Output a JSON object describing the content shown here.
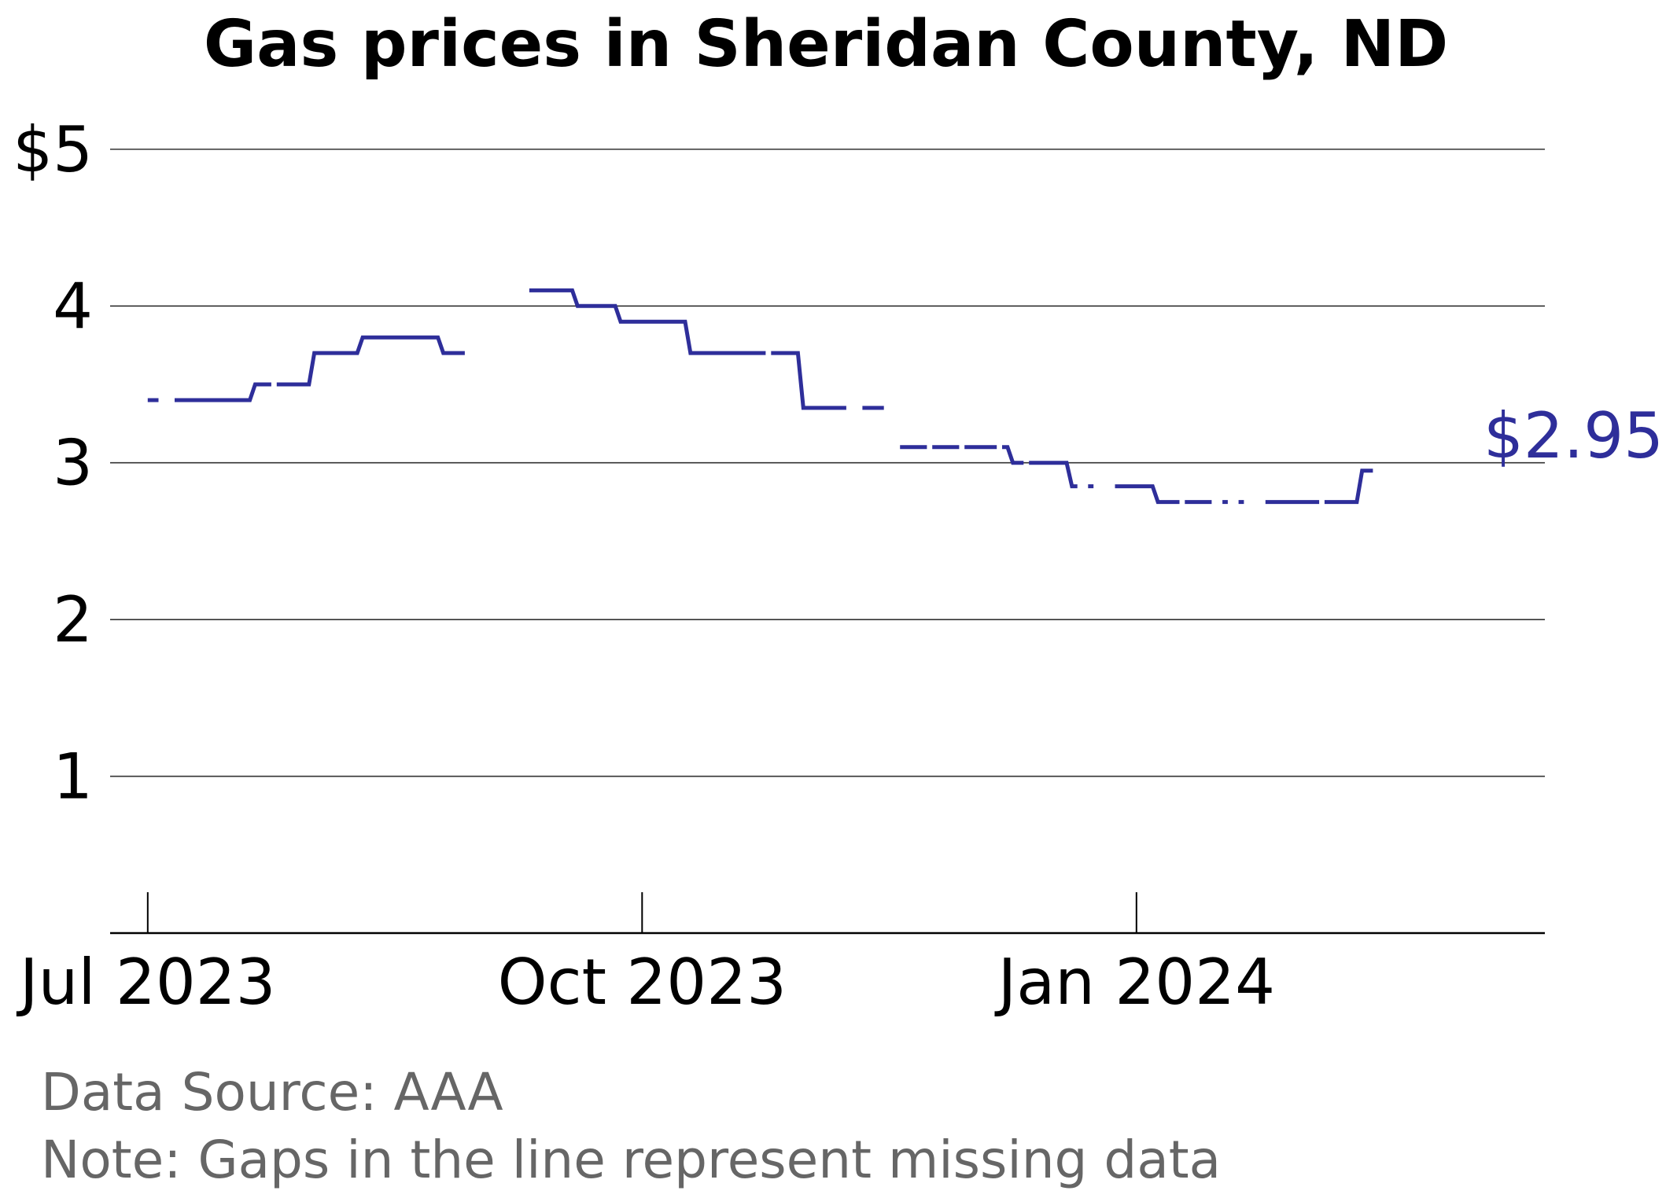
{
  "chart_data": {
    "type": "line",
    "title": "Gas prices in Sheridan County, ND",
    "xlabel": "",
    "ylabel": "",
    "ylim": [
      0,
      5.2
    ],
    "xlim": [
      "2023-06-24",
      "2024-03-17"
    ],
    "yticks": [
      1,
      2,
      3,
      4,
      5
    ],
    "ytick_labels": [
      "1",
      "2",
      "3",
      "4",
      "$5"
    ],
    "xticks": [
      "2023-07-01",
      "2023-10-01",
      "2024-01-01"
    ],
    "xtick_labels": [
      "Jul 2023",
      "Oct 2023",
      "Jan 2024"
    ],
    "grid": "horizontal",
    "end_label": "$2.95",
    "line_color": "#2e2e9a",
    "series": [
      {
        "segments": [
          [
            [
              "2023-07-01",
              3.4
            ],
            [
              "2023-07-03",
              3.4
            ]
          ],
          [
            [
              "2023-07-06",
              3.4
            ],
            [
              "2023-07-20",
              3.4
            ],
            [
              "2023-07-21",
              3.5
            ],
            [
              "2023-07-24",
              3.5
            ]
          ],
          [
            [
              "2023-07-25",
              3.5
            ],
            [
              "2023-07-31",
              3.5
            ],
            [
              "2023-08-01",
              3.7
            ],
            [
              "2023-08-09",
              3.7
            ],
            [
              "2023-08-10",
              3.8
            ],
            [
              "2023-08-24",
              3.8
            ],
            [
              "2023-08-25",
              3.7
            ],
            [
              "2023-08-29",
              3.7
            ]
          ],
          [
            [
              "2023-09-10",
              4.1
            ],
            [
              "2023-09-18",
              4.1
            ],
            [
              "2023-09-19",
              4.0
            ],
            [
              "2023-09-26",
              4.0
            ],
            [
              "2023-09-27",
              3.9
            ],
            [
              "2023-10-09",
              3.9
            ],
            [
              "2023-10-10",
              3.7
            ],
            [
              "2023-10-24",
              3.7
            ]
          ],
          [
            [
              "2023-10-25",
              3.7
            ],
            [
              "2023-10-30",
              3.7
            ],
            [
              "2023-10-31",
              3.35
            ],
            [
              "2023-11-08",
              3.35
            ]
          ],
          [
            [
              "2023-11-11",
              3.35
            ],
            [
              "2023-11-15",
              3.35
            ]
          ],
          [
            [
              "2023-11-18",
              3.1
            ],
            [
              "2023-11-23",
              3.1
            ]
          ],
          [
            [
              "2023-11-24",
              3.1
            ],
            [
              "2023-11-29",
              3.1
            ]
          ],
          [
            [
              "2023-11-30",
              3.1
            ],
            [
              "2023-12-06",
              3.1
            ]
          ],
          [
            [
              "2023-12-07",
              3.1
            ],
            [
              "2023-12-08",
              3.1
            ],
            [
              "2023-12-09",
              3.0
            ],
            [
              "2023-12-11",
              3.0
            ]
          ],
          [
            [
              "2023-12-12",
              3.0
            ],
            [
              "2023-12-19",
              3.0
            ],
            [
              "2023-12-20",
              2.85
            ],
            [
              "2023-12-21",
              2.85
            ]
          ],
          [
            [
              "2023-12-23",
              2.85
            ],
            [
              "2023-12-24",
              2.85
            ]
          ],
          [
            [
              "2023-12-28",
              2.85
            ],
            [
              "2024-01-04",
              2.85
            ],
            [
              "2024-01-05",
              2.75
            ],
            [
              "2024-01-09",
              2.75
            ]
          ],
          [
            [
              "2024-01-10",
              2.75
            ],
            [
              "2024-01-15",
              2.75
            ]
          ],
          [
            [
              "2024-01-17",
              2.75
            ],
            [
              "2024-01-18",
              2.75
            ]
          ],
          [
            [
              "2024-01-20",
              2.75
            ],
            [
              "2024-01-21",
              2.75
            ]
          ],
          [
            [
              "2024-01-25",
              2.75
            ],
            [
              "2024-02-04",
              2.75
            ]
          ],
          [
            [
              "2024-02-05",
              2.75
            ],
            [
              "2024-02-11",
              2.75
            ],
            [
              "2024-02-12",
              2.95
            ],
            [
              "2024-02-14",
              2.95
            ]
          ]
        ]
      }
    ]
  },
  "footer": {
    "source": "Data Source: AAA",
    "note": "Note: Gaps in the line represent missing data"
  }
}
